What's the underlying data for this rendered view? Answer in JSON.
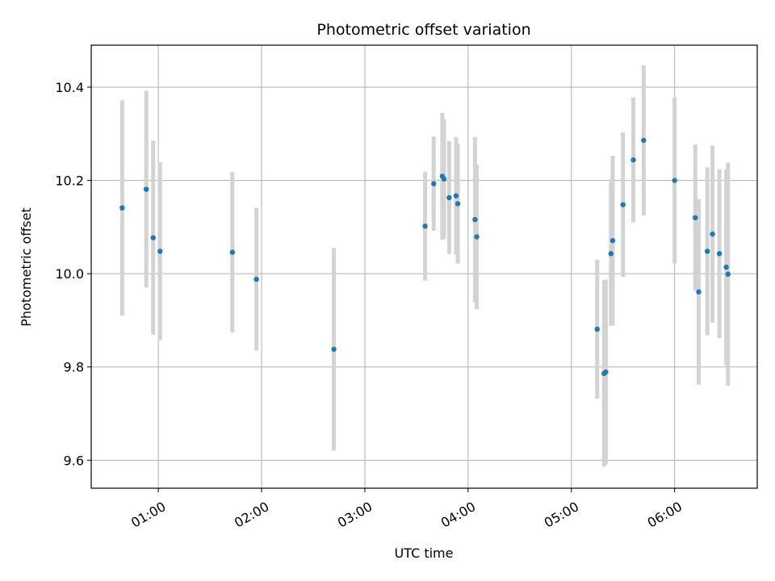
{
  "chart_data": {
    "type": "scatter",
    "title": "Photometric offset variation",
    "xlabel": "UTC time",
    "ylabel": "Photometric offset",
    "x_axis_kind": "time",
    "x_unit": "UTC hh:mm",
    "xlim": [
      "00:21",
      "06:48"
    ],
    "ylim": [
      9.54,
      10.49
    ],
    "grid": true,
    "x_ticks": [
      "01:00",
      "02:00",
      "03:00",
      "04:00",
      "05:00",
      "06:00"
    ],
    "y_ticks": [
      9.6,
      9.8,
      10.0,
      10.2,
      10.4
    ],
    "colors": {
      "point": "#1f77b4",
      "errorbar": "#d3d3d3",
      "grid": "#b0b0b0",
      "axes": "#000000"
    },
    "points": [
      {
        "t": "00:39",
        "y": 10.141,
        "err": 0.231
      },
      {
        "t": "00:53",
        "y": 10.181,
        "err": 0.211
      },
      {
        "t": "00:57",
        "y": 10.077,
        "err": 0.208
      },
      {
        "t": "01:01",
        "y": 10.048,
        "err": 0.191
      },
      {
        "t": "01:43",
        "y": 10.046,
        "err": 0.172
      },
      {
        "t": "01:57",
        "y": 9.988,
        "err": 0.153
      },
      {
        "t": "02:42",
        "y": 9.838,
        "err": 0.217
      },
      {
        "t": "03:35",
        "y": 10.102,
        "err": 0.117
      },
      {
        "t": "03:40",
        "y": 10.193,
        "err": 0.101
      },
      {
        "t": "03:45",
        "y": 10.209,
        "err": 0.136
      },
      {
        "t": "03:46",
        "y": 10.203,
        "err": 0.128
      },
      {
        "t": "03:49",
        "y": 10.163,
        "err": 0.121
      },
      {
        "t": "03:53",
        "y": 10.167,
        "err": 0.126
      },
      {
        "t": "03:54",
        "y": 10.15,
        "err": 0.128
      },
      {
        "t": "04:04",
        "y": 10.116,
        "err": 0.177
      },
      {
        "t": "04:05",
        "y": 10.079,
        "err": 0.155
      },
      {
        "t": "05:15",
        "y": 9.881,
        "err": 0.149
      },
      {
        "t": "05:19",
        "y": 9.786,
        "err": 0.2
      },
      {
        "t": "05:20",
        "y": 9.789,
        "err": 0.198
      },
      {
        "t": "05:23",
        "y": 10.043,
        "err": 0.155
      },
      {
        "t": "05:24",
        "y": 10.071,
        "err": 0.182
      },
      {
        "t": "05:30",
        "y": 10.148,
        "err": 0.155
      },
      {
        "t": "05:36",
        "y": 10.244,
        "err": 0.134
      },
      {
        "t": "05:42",
        "y": 10.286,
        "err": 0.161
      },
      {
        "t": "06:00",
        "y": 10.2,
        "err": 0.178
      },
      {
        "t": "06:12",
        "y": 10.12,
        "err": 0.157
      },
      {
        "t": "06:14",
        "y": 9.961,
        "err": 0.199
      },
      {
        "t": "06:19",
        "y": 10.048,
        "err": 0.18
      },
      {
        "t": "06:22",
        "y": 10.085,
        "err": 0.19
      },
      {
        "t": "06:26",
        "y": 10.043,
        "err": 0.181
      },
      {
        "t": "06:30",
        "y": 10.014,
        "err": 0.21
      },
      {
        "t": "06:31",
        "y": 9.999,
        "err": 0.239
      }
    ]
  }
}
